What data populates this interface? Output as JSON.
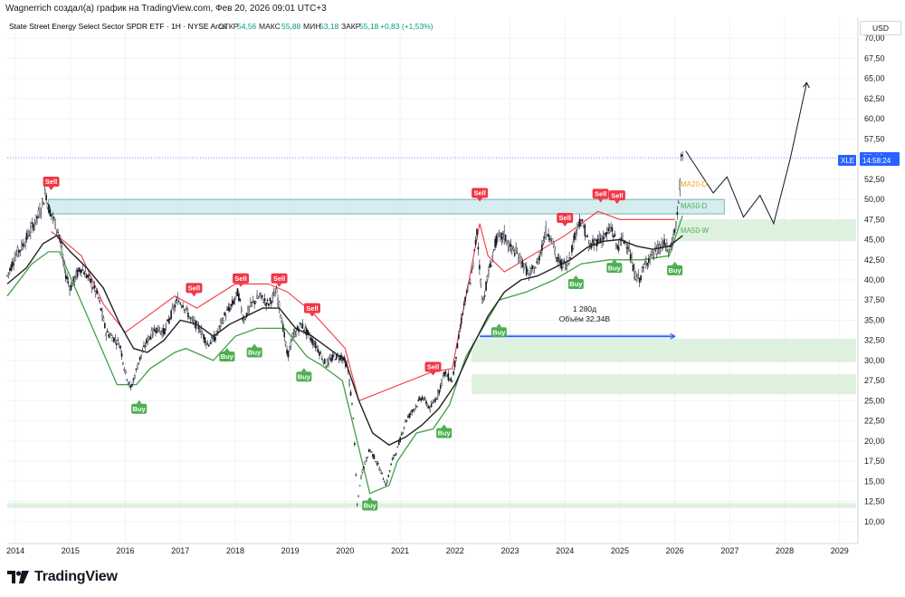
{
  "header": {
    "attribution": "Wagnerrich создал(а) график на TradingView.com, Фев 20, 2026 09:01 UTC+3"
  },
  "legend": {
    "symbol_name": "State Street Energy Select Sector SPDR ETF · 1Н · NYSE Arca",
    "open_label": "ОТКР",
    "open_value": "54,56",
    "high_label": "МАКС",
    "high_value": "55,88",
    "low_label": "МИН",
    "low_value": "53,18",
    "close_label": "ЗАКР",
    "close_value": "55,18",
    "change": "+0,83 (+1,53%)"
  },
  "currency": "USD",
  "ticker_tag": {
    "symbol": "XLE",
    "time": "14:58:24"
  },
  "ma_labels": [
    "MA20-D",
    "MA50-D",
    "MA50-W"
  ],
  "measure": {
    "duration": "1 280д",
    "volume": "Объём 32,34B"
  },
  "brand": {
    "name": "TradingView"
  },
  "colors": {
    "up": "#26a69a",
    "down": "#ef5350",
    "buy": "#4caf50",
    "sell": "#f23645",
    "ma_black": "#222222",
    "zone_blue": "#b2dfdb",
    "zone_green": "#c8e6c9"
  },
  "chart_data": {
    "type": "line",
    "title": "State Street Energy Select Sector SPDR ETF · 1Н · NYSE Arca",
    "xlabel": "",
    "ylabel": "USD",
    "ylim": [
      7.5,
      72.5
    ],
    "xlim": [
      2013.85,
      2029.3
    ],
    "y_ticks": [
      "10,00",
      "12,50",
      "15,00",
      "17,50",
      "20,00",
      "22,50",
      "25,00",
      "27,50",
      "30,00",
      "32,50",
      "35,00",
      "37,50",
      "40,00",
      "42,50",
      "45,00",
      "47,50",
      "50,00",
      "52,50",
      "55,00",
      "57,50",
      "60,00",
      "62,50",
      "65,00",
      "67,50",
      "70,00"
    ],
    "x_ticks": [
      {
        "label": "2014",
        "x": 2014
      },
      {
        "label": "2015",
        "x": 2015
      },
      {
        "label": "2016",
        "x": 2016
      },
      {
        "label": "2017",
        "x": 2017
      },
      {
        "label": "2018",
        "x": 2018
      },
      {
        "label": "2019",
        "x": 2019
      },
      {
        "label": "2020",
        "x": 2020
      },
      {
        "label": "2021",
        "x": 2021
      },
      {
        "label": "2022",
        "x": 2022
      },
      {
        "label": "2023",
        "x": 2023
      },
      {
        "label": "2024",
        "x": 2024
      },
      {
        "label": "2025",
        "x": 2025
      },
      {
        "label": "2026",
        "x": 2026
      },
      {
        "label": "2027",
        "x": 2027
      },
      {
        "label": "2028",
        "x": 2028
      },
      {
        "label": "2029",
        "x": 2029
      }
    ],
    "price": [
      [
        2013.85,
        40.5
      ],
      [
        2014.0,
        43.0
      ],
      [
        2014.15,
        44.5
      ],
      [
        2014.3,
        46.5
      ],
      [
        2014.45,
        48.5
      ],
      [
        2014.55,
        51.0
      ],
      [
        2014.6,
        49.0
      ],
      [
        2014.7,
        47.5
      ],
      [
        2014.8,
        45.5
      ],
      [
        2014.9,
        41.0
      ],
      [
        2015.0,
        39.0
      ],
      [
        2015.1,
        40.5
      ],
      [
        2015.2,
        41.5
      ],
      [
        2015.35,
        40.0
      ],
      [
        2015.5,
        38.0
      ],
      [
        2015.65,
        33.5
      ],
      [
        2015.75,
        33.0
      ],
      [
        2015.9,
        32.0
      ],
      [
        2016.0,
        28.5
      ],
      [
        2016.1,
        26.5
      ],
      [
        2016.25,
        30.0
      ],
      [
        2016.4,
        32.5
      ],
      [
        2016.55,
        34.0
      ],
      [
        2016.7,
        33.5
      ],
      [
        2016.85,
        36.0
      ],
      [
        2016.95,
        37.5
      ],
      [
        2017.05,
        37.0
      ],
      [
        2017.2,
        35.0
      ],
      [
        2017.35,
        34.0
      ],
      [
        2017.5,
        32.0
      ],
      [
        2017.65,
        33.0
      ],
      [
        2017.8,
        35.5
      ],
      [
        2017.95,
        37.0
      ],
      [
        2018.05,
        38.5
      ],
      [
        2018.15,
        35.0
      ],
      [
        2018.3,
        37.0
      ],
      [
        2018.45,
        38.0
      ],
      [
        2018.6,
        37.0
      ],
      [
        2018.75,
        38.5
      ],
      [
        2018.85,
        35.0
      ],
      [
        2018.95,
        30.5
      ],
      [
        2019.05,
        33.0
      ],
      [
        2019.2,
        34.5
      ],
      [
        2019.35,
        33.0
      ],
      [
        2019.5,
        31.5
      ],
      [
        2019.65,
        29.5
      ],
      [
        2019.8,
        30.5
      ],
      [
        2019.95,
        30.5
      ],
      [
        2020.05,
        29.0
      ],
      [
        2020.15,
        23.0
      ],
      [
        2020.22,
        12.0
      ],
      [
        2020.3,
        16.0
      ],
      [
        2020.45,
        19.0
      ],
      [
        2020.6,
        17.0
      ],
      [
        2020.75,
        14.5
      ],
      [
        2020.85,
        17.5
      ],
      [
        2020.95,
        19.0
      ],
      [
        2021.1,
        22.5
      ],
      [
        2021.25,
        24.0
      ],
      [
        2021.4,
        25.5
      ],
      [
        2021.55,
        24.0
      ],
      [
        2021.7,
        26.0
      ],
      [
        2021.8,
        28.5
      ],
      [
        2021.95,
        27.5
      ],
      [
        2022.05,
        32.0
      ],
      [
        2022.15,
        36.5
      ],
      [
        2022.3,
        40.5
      ],
      [
        2022.4,
        46.0
      ],
      [
        2022.5,
        37.0
      ],
      [
        2022.6,
        40.5
      ],
      [
        2022.75,
        45.0
      ],
      [
        2022.9,
        45.5
      ],
      [
        2023.0,
        44.0
      ],
      [
        2023.1,
        43.5
      ],
      [
        2023.2,
        42.5
      ],
      [
        2023.35,
        40.5
      ],
      [
        2023.5,
        42.0
      ],
      [
        2023.65,
        46.0
      ],
      [
        2023.75,
        45.5
      ],
      [
        2023.85,
        42.5
      ],
      [
        2023.95,
        42.0
      ],
      [
        2024.05,
        42.0
      ],
      [
        2024.15,
        44.5
      ],
      [
        2024.25,
        47.5
      ],
      [
        2024.35,
        46.5
      ],
      [
        2024.45,
        44.0
      ],
      [
        2024.6,
        45.0
      ],
      [
        2024.75,
        45.5
      ],
      [
        2024.85,
        46.5
      ],
      [
        2024.95,
        44.0
      ],
      [
        2025.05,
        45.0
      ],
      [
        2025.15,
        44.5
      ],
      [
        2025.25,
        41.0
      ],
      [
        2025.35,
        40.0
      ],
      [
        2025.5,
        42.5
      ],
      [
        2025.65,
        43.5
      ],
      [
        2025.8,
        44.5
      ],
      [
        2025.9,
        43.5
      ],
      [
        2026.0,
        46.0
      ],
      [
        2026.08,
        50.0
      ],
      [
        2026.12,
        55.5
      ],
      [
        2026.14,
        55.2
      ]
    ],
    "ma_line": [
      [
        2013.85,
        39.5
      ],
      [
        2014.2,
        41.5
      ],
      [
        2014.5,
        44.5
      ],
      [
        2014.75,
        45.5
      ],
      [
        2015.0,
        43.5
      ],
      [
        2015.3,
        41.5
      ],
      [
        2015.6,
        39.0
      ],
      [
        2015.9,
        34.5
      ],
      [
        2016.15,
        31.5
      ],
      [
        2016.4,
        31.0
      ],
      [
        2016.7,
        32.5
      ],
      [
        2017.0,
        35.0
      ],
      [
        2017.3,
        34.5
      ],
      [
        2017.6,
        33.0
      ],
      [
        2017.9,
        34.5
      ],
      [
        2018.2,
        35.5
      ],
      [
        2018.5,
        36.5
      ],
      [
        2018.8,
        36.5
      ],
      [
        2019.1,
        34.0
      ],
      [
        2019.4,
        33.0
      ],
      [
        2019.7,
        31.5
      ],
      [
        2020.0,
        30.0
      ],
      [
        2020.25,
        25.0
      ],
      [
        2020.5,
        21.0
      ],
      [
        2020.8,
        19.5
      ],
      [
        2021.1,
        20.5
      ],
      [
        2021.4,
        22.0
      ],
      [
        2021.7,
        24.0
      ],
      [
        2022.0,
        27.0
      ],
      [
        2022.3,
        31.5
      ],
      [
        2022.6,
        35.5
      ],
      [
        2022.9,
        38.5
      ],
      [
        2023.2,
        40.0
      ],
      [
        2023.5,
        40.5
      ],
      [
        2023.8,
        41.5
      ],
      [
        2024.1,
        42.5
      ],
      [
        2024.4,
        44.0
      ],
      [
        2024.7,
        44.8
      ],
      [
        2025.0,
        45.0
      ],
      [
        2025.3,
        44.2
      ],
      [
        2025.6,
        43.8
      ],
      [
        2025.9,
        44.2
      ],
      [
        2026.14,
        45.5
      ]
    ],
    "supertrend_up": [
      [
        2013.85,
        38.0
      ],
      [
        2014.3,
        42.0
      ],
      [
        2014.6,
        43.5
      ],
      [
        2014.8,
        43.5
      ],
      [
        2015.85,
        27.0
      ],
      [
        2016.2,
        27.0
      ],
      [
        2016.45,
        29.0
      ],
      [
        2016.9,
        31.0
      ],
      [
        2017.1,
        31.5
      ],
      [
        2017.6,
        30.0
      ],
      [
        2018.0,
        33.0
      ],
      [
        2018.4,
        34.0
      ],
      [
        2018.9,
        34.0
      ],
      [
        2019.3,
        30.5
      ],
      [
        2019.55,
        29.5
      ],
      [
        2019.95,
        27.5
      ],
      [
        2020.45,
        13.5
      ],
      [
        2020.8,
        14.5
      ],
      [
        2020.95,
        17.5
      ],
      [
        2021.3,
        21.0
      ],
      [
        2021.6,
        21.5
      ],
      [
        2021.9,
        24.5
      ],
      [
        2022.2,
        30.5
      ],
      [
        2022.5,
        34.0
      ],
      [
        2022.8,
        37.5
      ],
      [
        2023.3,
        38.5
      ],
      [
        2023.8,
        40.0
      ],
      [
        2024.3,
        42.0
      ],
      [
        2024.8,
        42.5
      ],
      [
        2025.4,
        42.5
      ],
      [
        2025.9,
        43.0
      ],
      [
        2026.14,
        48.0
      ]
    ],
    "supertrend_down": [
      [
        2014.65,
        46.0
      ],
      [
        2014.85,
        45.0
      ],
      [
        2015.2,
        43.0
      ],
      [
        2015.6,
        37.0
      ],
      [
        2016.0,
        33.5
      ],
      [
        2016.9,
        38.0
      ],
      [
        2017.3,
        36.5
      ],
      [
        2018.0,
        39.5
      ],
      [
        2018.6,
        39.5
      ],
      [
        2018.95,
        38.5
      ],
      [
        2019.4,
        36.0
      ],
      [
        2020.0,
        31.5
      ],
      [
        2020.25,
        25.0
      ],
      [
        2021.55,
        28.5
      ],
      [
        2021.95,
        29.0
      ],
      [
        2022.45,
        47.0
      ],
      [
        2022.6,
        43.0
      ],
      [
        2022.9,
        41.0
      ],
      [
        2024.0,
        45.5
      ],
      [
        2024.6,
        48.5
      ],
      [
        2025.0,
        47.5
      ],
      [
        2025.5,
        47.5
      ],
      [
        2026.0,
        47.5
      ]
    ],
    "zones": [
      {
        "name": "resistance-zone",
        "color": "blue",
        "y1": 48.2,
        "y2": 50.0,
        "x1": 2014.6,
        "x2": 2026.9
      },
      {
        "name": "support-zone-45",
        "color": "green",
        "y1": 44.8,
        "y2": 47.5,
        "x1": 2026.05,
        "x2": 2029.3
      },
      {
        "name": "support-zone-30",
        "color": "green",
        "y1": 29.8,
        "y2": 32.7,
        "x1": 2022.3,
        "x2": 2029.3
      },
      {
        "name": "support-zone-27",
        "color": "green",
        "y1": 25.8,
        "y2": 28.3,
        "x1": 2022.3,
        "x2": 2029.3
      },
      {
        "name": "support-line-12",
        "color": "green",
        "y1": 11.7,
        "y2": 12.3,
        "x1": 2013.85,
        "x2": 2029.3
      }
    ],
    "projection": [
      [
        2026.2,
        56.0
      ],
      [
        2026.7,
        50.8
      ],
      [
        2026.95,
        52.8
      ],
      [
        2027.25,
        47.8
      ],
      [
        2027.55,
        50.5
      ],
      [
        2027.8,
        47.0
      ],
      [
        2028.1,
        55.0
      ],
      [
        2028.4,
        64.5
      ]
    ],
    "measure_arrow": {
      "x1": 2022.45,
      "x2": 2026.0,
      "y": 33.0
    },
    "signals": [
      {
        "type": "Sell",
        "x": 2014.65,
        "y": 52.2
      },
      {
        "type": "Sell",
        "x": 2017.25,
        "y": 39.0
      },
      {
        "type": "Sell",
        "x": 2018.1,
        "y": 40.2
      },
      {
        "type": "Sell",
        "x": 2018.8,
        "y": 40.2
      },
      {
        "type": "Sell",
        "x": 2019.4,
        "y": 36.5
      },
      {
        "type": "Sell",
        "x": 2021.6,
        "y": 29.2
      },
      {
        "type": "Sell",
        "x": 2022.45,
        "y": 50.8
      },
      {
        "type": "Sell",
        "x": 2024.0,
        "y": 47.7
      },
      {
        "type": "Sell",
        "x": 2024.65,
        "y": 50.7
      },
      {
        "type": "Sell",
        "x": 2024.95,
        "y": 50.5
      },
      {
        "type": "Buy",
        "x": 2016.25,
        "y": 24.0
      },
      {
        "type": "Buy",
        "x": 2017.85,
        "y": 30.5
      },
      {
        "type": "Buy",
        "x": 2018.35,
        "y": 31.0
      },
      {
        "type": "Buy",
        "x": 2019.25,
        "y": 28.0
      },
      {
        "type": "Buy",
        "x": 2020.45,
        "y": 12.0
      },
      {
        "type": "Buy",
        "x": 2021.8,
        "y": 21.0
      },
      {
        "type": "Buy",
        "x": 2022.8,
        "y": 33.5
      },
      {
        "type": "Buy",
        "x": 2024.2,
        "y": 39.5
      },
      {
        "type": "Buy",
        "x": 2024.9,
        "y": 41.5
      },
      {
        "type": "Buy",
        "x": 2026.0,
        "y": 41.2
      }
    ]
  }
}
